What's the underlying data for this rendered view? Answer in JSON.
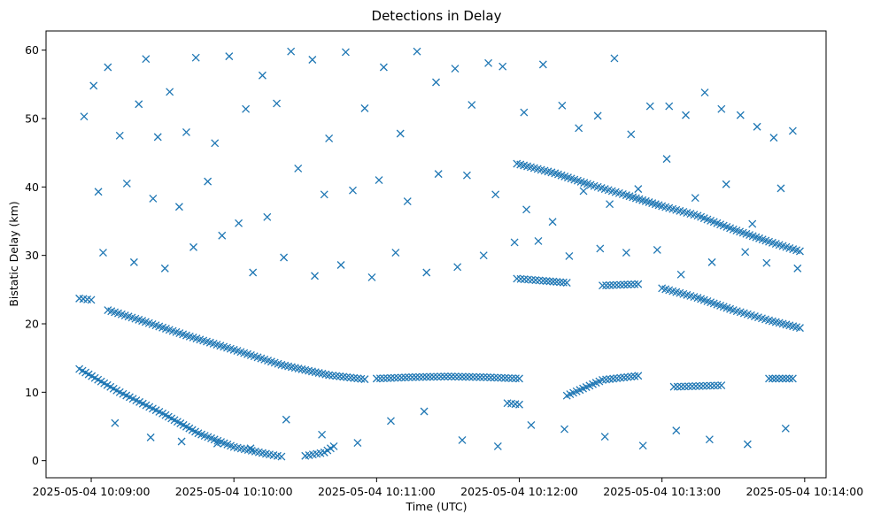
{
  "chart_data": {
    "type": "scatter",
    "title": "Detections in Delay",
    "xlabel": "Time (UTC)",
    "ylabel": "Bistatic Delay (km)",
    "marker": "x",
    "color": "#1f77b4",
    "xlim": [
      "2025-05-04 10:08:41",
      "2025-05-04 10:14:09"
    ],
    "ylim": [
      -2.5,
      62.8
    ],
    "xticks": [
      "2025-05-04 10:09:00",
      "2025-05-04 10:10:00",
      "2025-05-04 10:11:00",
      "2025-05-04 10:12:00",
      "2025-05-04 10:13:00",
      "2025-05-04 10:14:00"
    ],
    "yticks": [
      0,
      10,
      20,
      30,
      40,
      50,
      60
    ],
    "grid": false,
    "tracks": [
      {
        "x": [
          "2025-05-04 10:08:55",
          "2025-05-04 10:09:12",
          "2025-05-04 10:09:30",
          "2025-05-04 10:09:45",
          "2025-05-04 10:10:00",
          "2025-05-04 10:10:15",
          "2025-05-04 10:10:20"
        ],
        "y": [
          13.4,
          10.0,
          6.9,
          4.0,
          2.0,
          0.9,
          0.6
        ]
      },
      {
        "x": [
          "2025-05-04 10:10:30",
          "2025-05-04 10:10:38",
          "2025-05-04 10:10:42"
        ],
        "y": [
          0.7,
          1.2,
          2.1
        ]
      },
      {
        "x": [
          "2025-05-04 10:08:55",
          "2025-05-04 10:09:00"
        ],
        "y": [
          23.7,
          23.5
        ]
      },
      {
        "x": [
          "2025-05-04 10:09:07",
          "2025-05-04 10:09:20",
          "2025-05-04 10:09:40",
          "2025-05-04 10:10:00",
          "2025-05-04 10:10:20",
          "2025-05-04 10:10:40",
          "2025-05-04 10:10:55"
        ],
        "y": [
          22.0,
          20.6,
          18.3,
          16.2,
          14.0,
          12.5,
          11.9
        ]
      },
      {
        "x": [
          "2025-05-04 10:11:00",
          "2025-05-04 10:11:15",
          "2025-05-04 10:11:30",
          "2025-05-04 10:11:45",
          "2025-05-04 10:12:00"
        ],
        "y": [
          12.0,
          12.2,
          12.3,
          12.2,
          12.0
        ]
      },
      {
        "x": [
          "2025-05-04 10:11:55",
          "2025-05-04 10:12:00"
        ],
        "y": [
          8.4,
          8.2
        ]
      },
      {
        "x": [
          "2025-05-04 10:12:20",
          "2025-05-04 10:12:35",
          "2025-05-04 10:12:50"
        ],
        "y": [
          9.5,
          11.8,
          12.4
        ]
      },
      {
        "x": [
          "2025-05-04 10:13:05",
          "2025-05-04 10:13:25"
        ],
        "y": [
          10.8,
          11.0
        ]
      },
      {
        "x": [
          "2025-05-04 10:13:45",
          "2025-05-04 10:13:55"
        ],
        "y": [
          12.0,
          12.0
        ]
      },
      {
        "x": [
          "2025-05-04 10:11:59",
          "2025-05-04 10:12:10",
          "2025-05-04 10:12:20"
        ],
        "y": [
          26.6,
          26.3,
          26.0
        ]
      },
      {
        "x": [
          "2025-05-04 10:12:35",
          "2025-05-04 10:12:50"
        ],
        "y": [
          25.6,
          25.8
        ]
      },
      {
        "x": [
          "2025-05-04 10:13:00",
          "2025-05-04 10:13:15",
          "2025-05-04 10:13:30",
          "2025-05-04 10:13:45",
          "2025-05-04 10:13:58"
        ],
        "y": [
          25.2,
          23.8,
          22.0,
          20.5,
          19.4
        ]
      },
      {
        "x": [
          "2025-05-04 10:11:59",
          "2025-05-04 10:12:15",
          "2025-05-04 10:12:30",
          "2025-05-04 10:12:45",
          "2025-05-04 10:13:00",
          "2025-05-04 10:13:15",
          "2025-05-04 10:13:30",
          "2025-05-04 10:13:45",
          "2025-05-04 10:13:58"
        ],
        "y": [
          43.4,
          42.0,
          40.3,
          38.8,
          37.2,
          35.8,
          33.8,
          32.0,
          30.6
        ]
      }
    ],
    "scattered": {
      "x": [
        "2025-05-04 10:08:57",
        "2025-05-04 10:09:01",
        "2025-05-04 10:09:07",
        "2025-05-04 10:09:12",
        "2025-05-04 10:09:20",
        "2025-05-04 10:09:23",
        "2025-05-04 10:09:28",
        "2025-05-04 10:09:33",
        "2025-05-04 10:09:40",
        "2025-05-04 10:09:44",
        "2025-05-04 10:09:52",
        "2025-05-04 10:09:58",
        "2025-05-04 10:10:05",
        "2025-05-04 10:10:12",
        "2025-05-04 10:10:18",
        "2025-05-04 10:10:24",
        "2025-05-04 10:10:33",
        "2025-05-04 10:10:40",
        "2025-05-04 10:10:47",
        "2025-05-04 10:10:55",
        "2025-05-04 10:11:03",
        "2025-05-04 10:11:10",
        "2025-05-04 10:11:17",
        "2025-05-04 10:11:25",
        "2025-05-04 10:11:33",
        "2025-05-04 10:11:40",
        "2025-05-04 10:11:47",
        "2025-05-04 10:11:53",
        "2025-05-04 10:12:02",
        "2025-05-04 10:12:10",
        "2025-05-04 10:12:18",
        "2025-05-04 10:12:25",
        "2025-05-04 10:12:33",
        "2025-05-04 10:12:40",
        "2025-05-04 10:12:47",
        "2025-05-04 10:12:55",
        "2025-05-04 10:13:03",
        "2025-05-04 10:13:10",
        "2025-05-04 10:13:18",
        "2025-05-04 10:13:25",
        "2025-05-04 10:13:33",
        "2025-05-04 10:13:40",
        "2025-05-04 10:13:47",
        "2025-05-04 10:13:55",
        "2025-05-04 10:09:03",
        "2025-05-04 10:09:15",
        "2025-05-04 10:09:26",
        "2025-05-04 10:09:37",
        "2025-05-04 10:09:49",
        "2025-05-04 10:10:02",
        "2025-05-04 10:10:14",
        "2025-05-04 10:10:27",
        "2025-05-04 10:10:38",
        "2025-05-04 10:10:50",
        "2025-05-04 10:11:01",
        "2025-05-04 10:11:13",
        "2025-05-04 10:11:26",
        "2025-05-04 10:11:38",
        "2025-05-04 10:11:50",
        "2025-05-04 10:12:03",
        "2025-05-04 10:12:14",
        "2025-05-04 10:12:27",
        "2025-05-04 10:12:38",
        "2025-05-04 10:12:50",
        "2025-05-04 10:13:02",
        "2025-05-04 10:13:14",
        "2025-05-04 10:13:27",
        "2025-05-04 10:13:38",
        "2025-05-04 10:13:50",
        "2025-05-04 10:09:05",
        "2025-05-04 10:09:18",
        "2025-05-04 10:09:31",
        "2025-05-04 10:09:43",
        "2025-05-04 10:09:55",
        "2025-05-04 10:10:08",
        "2025-05-04 10:10:21",
        "2025-05-04 10:10:34",
        "2025-05-04 10:10:45",
        "2025-05-04 10:10:58",
        "2025-05-04 10:11:08",
        "2025-05-04 10:11:21",
        "2025-05-04 10:11:34",
        "2025-05-04 10:11:45",
        "2025-05-04 10:11:58",
        "2025-05-04 10:12:08",
        "2025-05-04 10:12:21",
        "2025-05-04 10:12:34",
        "2025-05-04 10:12:45",
        "2025-05-04 10:12:58",
        "2025-05-04 10:13:08",
        "2025-05-04 10:13:21",
        "2025-05-04 10:13:35",
        "2025-05-04 10:13:44",
        "2025-05-04 10:13:57",
        "2025-05-04 10:09:10",
        "2025-05-04 10:09:25",
        "2025-05-04 10:09:38",
        "2025-05-04 10:09:53",
        "2025-05-04 10:10:07",
        "2025-05-04 10:10:22",
        "2025-05-04 10:10:37",
        "2025-05-04 10:10:52",
        "2025-05-04 10:11:06",
        "2025-05-04 10:11:20",
        "2025-05-04 10:11:36",
        "2025-05-04 10:11:51",
        "2025-05-04 10:12:05",
        "2025-05-04 10:12:19",
        "2025-05-04 10:12:36",
        "2025-05-04 10:12:52",
        "2025-05-04 10:13:06",
        "2025-05-04 10:13:20",
        "2025-05-04 10:13:36",
        "2025-05-04 10:13:52"
      ],
      "y": [
        50.3,
        54.8,
        57.5,
        47.5,
        52.1,
        58.7,
        47.3,
        53.9,
        48.0,
        58.9,
        46.4,
        59.1,
        51.4,
        56.3,
        52.2,
        59.8,
        58.6,
        47.1,
        59.7,
        51.5,
        57.5,
        47.8,
        59.8,
        55.3,
        57.3,
        52.0,
        58.1,
        57.6,
        50.9,
        57.9,
        51.9,
        48.6,
        50.4,
        58.8,
        47.7,
        51.8,
        51.8,
        50.5,
        53.8,
        51.4,
        50.5,
        48.8,
        47.2,
        48.2,
        39.3,
        40.5,
        38.3,
        37.1,
        40.8,
        34.7,
        35.6,
        42.7,
        38.9,
        39.5,
        41.0,
        37.9,
        41.9,
        41.7,
        38.9,
        36.7,
        34.9,
        39.4,
        37.5,
        39.7,
        44.1,
        38.4,
        40.4,
        34.6,
        39.8,
        30.4,
        29.0,
        28.1,
        31.2,
        32.9,
        27.5,
        29.7,
        27.0,
        28.6,
        26.8,
        30.4,
        27.5,
        28.3,
        30.0,
        31.9,
        32.1,
        29.9,
        31.0,
        30.4,
        30.8,
        27.2,
        29.0,
        30.5,
        28.9,
        28.1,
        5.5,
        3.4,
        2.8,
        2.5,
        1.8,
        6.0,
        3.8,
        2.6,
        5.8,
        7.2,
        3.0,
        2.1,
        5.2,
        4.6,
        3.5,
        2.2,
        4.4,
        3.1,
        2.4,
        4.7
      ]
    }
  }
}
